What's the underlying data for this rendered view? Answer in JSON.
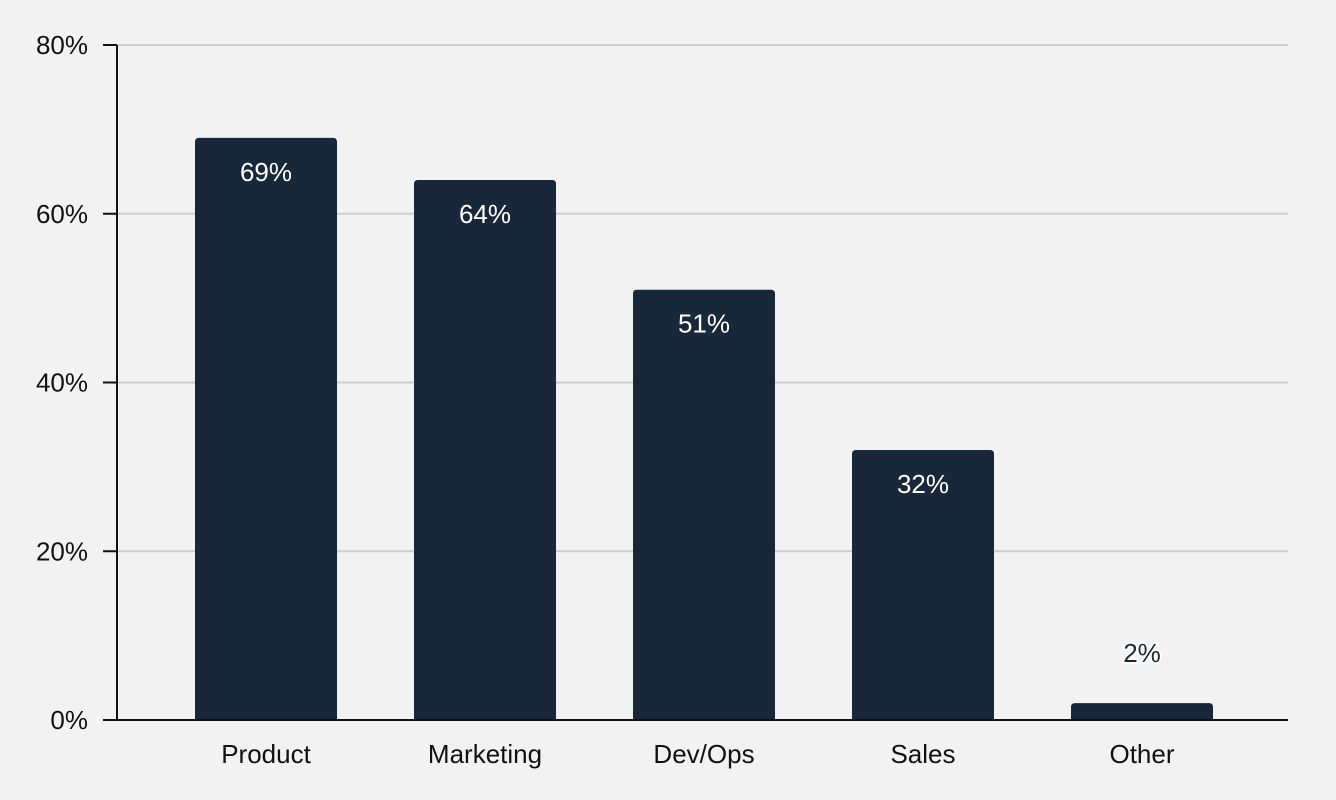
{
  "chart_data": {
    "type": "bar",
    "title": "",
    "xlabel": "",
    "ylabel": "",
    "categories": [
      "Product",
      "Marketing",
      "Dev/Ops",
      "Sales",
      "Other"
    ],
    "values": [
      69,
      64,
      51,
      32,
      2
    ],
    "value_labels": [
      "69%",
      "64%",
      "51%",
      "32%",
      "2%"
    ],
    "ylim": [
      0,
      80
    ],
    "yticks": [
      0,
      20,
      40,
      60,
      80
    ],
    "ytick_labels": [
      "0%",
      "20%",
      "40%",
      "60%",
      "80%"
    ],
    "grid": true,
    "colors": {
      "bar": "#19273a",
      "label_inside": "#ffffff",
      "label_outside": "#19273a",
      "grid": "#cccccc",
      "axis": "#111111",
      "background": "#f2f2f2"
    }
  }
}
